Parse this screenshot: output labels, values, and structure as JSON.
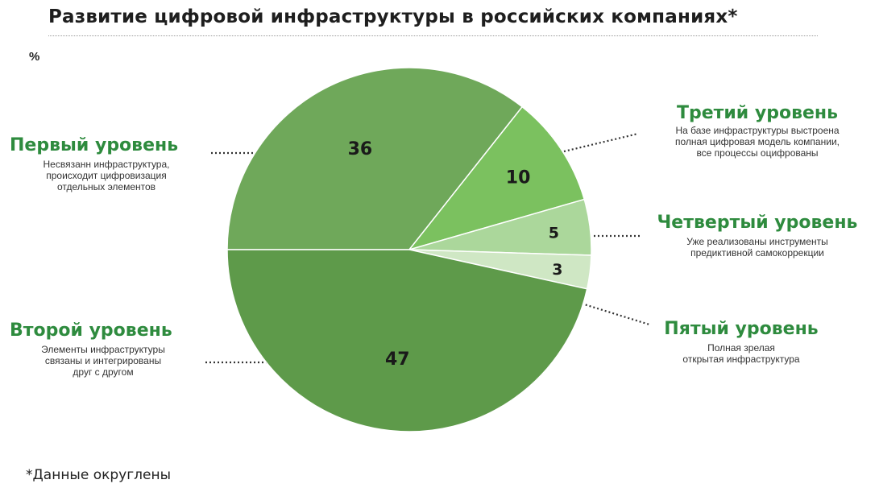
{
  "title": "Развитие цифровой инфраструктуры в российских компаниях*",
  "unit": "%",
  "footnote": "*Данные округлены",
  "colors": {
    "heading": "#2e8b3e",
    "slices": [
      "#6fa85a",
      "#5e9a4a",
      "#7bc15f",
      "#abd79b",
      "#cfe7c4"
    ]
  },
  "levels": [
    {
      "title": "Первый уровень",
      "desc": "Несвязанн инфраструктура,\nпроисходит цифровизация\nотдельных элементов"
    },
    {
      "title": "Второй уровень",
      "desc": "Элементы инфраструктуры\nсвязаны и интегрированы\nдруг с другом"
    },
    {
      "title": "Третий уровень",
      "desc": "На базе инфраструктуры выстроена\nполная цифровая модель компании,\nвсе процессы оцифрованы"
    },
    {
      "title": "Четвертый уровень",
      "desc": "Уже реализованы инструменты\nпредиктивной самокоррекции"
    },
    {
      "title": "Пятый уровень",
      "desc": "Полная  зрелая\nоткрытая инфраструктура"
    }
  ],
  "chart_data": {
    "type": "pie",
    "title": "Развитие цифровой инфраструктуры в российских компаниях*",
    "unit": "%",
    "slices": [
      {
        "label": "Первый уровень",
        "value": 36
      },
      {
        "label": "Второй уровень",
        "value": 47
      },
      {
        "label": "Третий уровень",
        "value": 10
      },
      {
        "label": "Четвертый уровень",
        "value": 5
      },
      {
        "label": "Пятый уровень",
        "value": 3
      }
    ]
  }
}
